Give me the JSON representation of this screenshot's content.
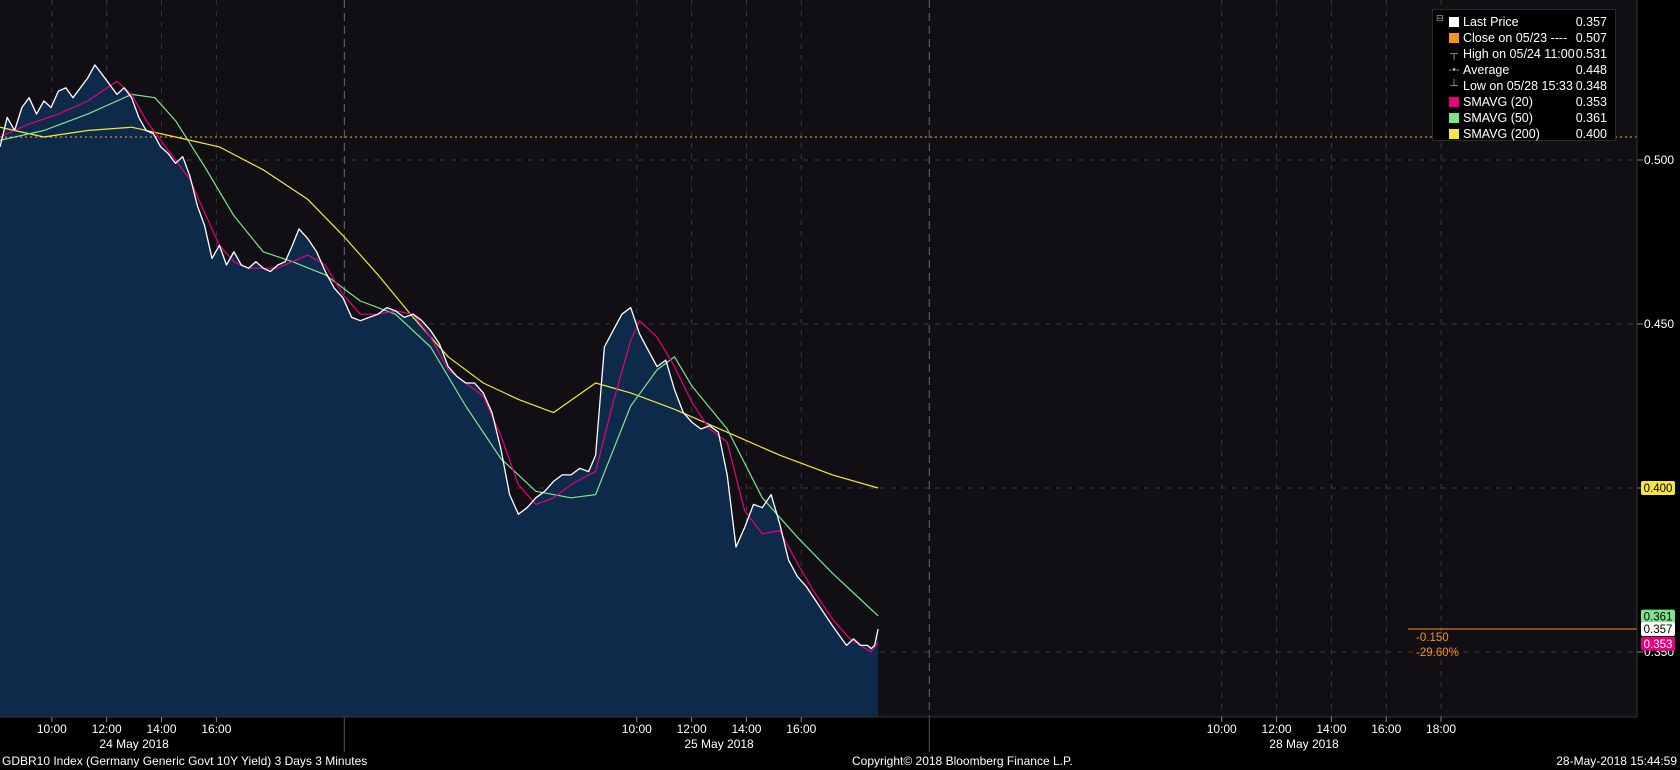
{
  "footer": {
    "left": "GDBR10 Index (Germany Generic Govt 10Y Yield) 3 Days 3 Minutes",
    "center": "Copyright© 2018 Bloomberg Finance L.P.",
    "right": "28-May-2018 15:44:59"
  },
  "legend": [
    {
      "label": "Last Price",
      "value": "0.357",
      "color": "#ffffff",
      "marker": "square"
    },
    {
      "label": "Close on 05/23 ----",
      "value": "0.507",
      "color": "#f7931e",
      "marker": "square"
    },
    {
      "label": "High on 05/24 11:00",
      "value": "0.531",
      "color": "#aaaaaa",
      "marker": "high-icon"
    },
    {
      "label": "Average",
      "value": "0.448",
      "color": "#aaaaaa",
      "marker": "average-icon"
    },
    {
      "label": "Low on 05/28 15:33",
      "value": "0.348",
      "color": "#aaaaaa",
      "marker": "low-icon"
    },
    {
      "label": "SMAVG (20)",
      "value": "0.353",
      "color": "#e6007e",
      "marker": "square"
    },
    {
      "label": "SMAVG (50)",
      "value": "0.361",
      "color": "#7fe38a",
      "marker": "square"
    },
    {
      "label": "SMAVG (200)",
      "value": "0.400",
      "color": "#f5e642",
      "marker": "square"
    }
  ],
  "chart_data": {
    "type": "area",
    "ylim": [
      0.32,
      0.535
    ],
    "y_ticks": [
      "0.500",
      "0.450",
      "0.400",
      "0.350"
    ],
    "y_tick_values": [
      0.5,
      0.45,
      0.4,
      0.35
    ],
    "x_tick_labels": [
      "10:00",
      "12:00",
      "14:00",
      "16:00",
      "10:00",
      "12:00",
      "14:00",
      "16:00",
      "10:00",
      "12:00",
      "14:00",
      "16:00",
      "18:00"
    ],
    "x_tick_times": [
      0.09375,
      0.125,
      0.15625,
      0.1875,
      0.4270833,
      0.4583333,
      0.4895833,
      0.5208333,
      0.7604167,
      0.7916667,
      0.8229167,
      0.8541667,
      0.8854167
    ],
    "day_labels": [
      "24 May 2018",
      "25 May 2018",
      "28 May 2018"
    ],
    "day_label_times": [
      0.140625,
      0.4739583,
      0.8072917
    ],
    "day_separator_times": [
      0.2604167,
      0.59375
    ],
    "xlim": [
      0.0642,
      0.8962
    ],
    "x_unit": "days since 24 May 2018 00:00 (25 May shown at +0.333, 28 May at +0.666 on the compressed trading axis)",
    "reference_line": {
      "label": "Close on 05/23",
      "value": 0.507,
      "color": "#f7931e"
    },
    "last_x": 0.8666,
    "series": [
      {
        "name": "Last Price",
        "color": "#ffffff",
        "points": [
          [
            0.0642,
            0.504
          ],
          [
            0.0683,
            0.513
          ],
          [
            0.0725,
            0.509
          ],
          [
            0.0767,
            0.516
          ],
          [
            0.0808,
            0.519
          ],
          [
            0.085,
            0.514
          ],
          [
            0.0892,
            0.518
          ],
          [
            0.0933,
            0.516
          ],
          [
            0.0975,
            0.521
          ],
          [
            0.1017,
            0.522
          ],
          [
            0.1058,
            0.519
          ],
          [
            0.11,
            0.522
          ],
          [
            0.1142,
            0.525
          ],
          [
            0.1183,
            0.529
          ],
          [
            0.1225,
            0.526
          ],
          [
            0.1267,
            0.523
          ],
          [
            0.1308,
            0.52
          ],
          [
            0.135,
            0.522
          ],
          [
            0.1392,
            0.519
          ],
          [
            0.1433,
            0.513
          ],
          [
            0.1475,
            0.509
          ],
          [
            0.1517,
            0.508
          ],
          [
            0.1558,
            0.504
          ],
          [
            0.16,
            0.502
          ],
          [
            0.1642,
            0.499
          ],
          [
            0.1683,
            0.501
          ],
          [
            0.1725,
            0.495
          ],
          [
            0.1767,
            0.486
          ],
          [
            0.1808,
            0.48
          ],
          [
            0.185,
            0.47
          ],
          [
            0.1892,
            0.474
          ],
          [
            0.1933,
            0.468
          ],
          [
            0.1975,
            0.472
          ],
          [
            0.2017,
            0.468
          ],
          [
            0.2058,
            0.467
          ],
          [
            0.21,
            0.469
          ],
          [
            0.2142,
            0.467
          ],
          [
            0.2183,
            0.466
          ],
          [
            0.2225,
            0.468
          ],
          [
            0.2267,
            0.469
          ],
          [
            0.2308,
            0.474
          ],
          [
            0.2346,
            0.479
          ],
          [
            0.2396,
            0.476
          ],
          [
            0.2446,
            0.472
          ],
          [
            0.2496,
            0.466
          ],
          [
            0.2546,
            0.461
          ],
          [
            0.2596,
            0.458
          ],
          [
            0.2646,
            0.452
          ],
          [
            0.2696,
            0.451
          ],
          [
            0.2746,
            0.452
          ],
          [
            0.2796,
            0.453
          ],
          [
            0.2846,
            0.455
          ],
          [
            0.2896,
            0.454
          ],
          [
            0.2946,
            0.452
          ],
          [
            0.2996,
            0.453
          ],
          [
            0.3046,
            0.451
          ],
          [
            0.3096,
            0.448
          ],
          [
            0.3146,
            0.444
          ],
          [
            0.3196,
            0.437
          ],
          [
            0.3246,
            0.434
          ],
          [
            0.3296,
            0.432
          ],
          [
            0.3346,
            0.432
          ],
          [
            0.3396,
            0.429
          ],
          [
            0.3446,
            0.423
          ],
          [
            0.3496,
            0.412
          ],
          [
            0.3546,
            0.398
          ],
          [
            0.3596,
            0.392
          ],
          [
            0.3646,
            0.394
          ],
          [
            0.3696,
            0.397
          ],
          [
            0.3746,
            0.399
          ],
          [
            0.3796,
            0.402
          ],
          [
            0.3846,
            0.404
          ],
          [
            0.3896,
            0.404
          ],
          [
            0.3946,
            0.406
          ],
          [
            0.3996,
            0.405
          ],
          [
            0.4036,
            0.41
          ],
          [
            0.4086,
            0.443
          ],
          [
            0.4136,
            0.448
          ],
          [
            0.4186,
            0.453
          ],
          [
            0.4236,
            0.455
          ],
          [
            0.4286,
            0.447
          ],
          [
            0.4336,
            0.442
          ],
          [
            0.4386,
            0.437
          ],
          [
            0.4436,
            0.439
          ],
          [
            0.4486,
            0.43
          ],
          [
            0.4536,
            0.423
          ],
          [
            0.4586,
            0.42
          ],
          [
            0.4636,
            0.418
          ],
          [
            0.4686,
            0.419
          ],
          [
            0.4736,
            0.417
          ],
          [
            0.4786,
            0.404
          ],
          [
            0.4836,
            0.382
          ],
          [
            0.4886,
            0.388
          ],
          [
            0.4936,
            0.395
          ],
          [
            0.4986,
            0.394
          ],
          [
            0.5036,
            0.398
          ],
          [
            0.5086,
            0.389
          ],
          [
            0.5136,
            0.378
          ],
          [
            0.5186,
            0.373
          ],
          [
            0.5236,
            0.37
          ],
          [
            0.5286,
            0.366
          ],
          [
            0.5336,
            0.362
          ],
          [
            0.5386,
            0.358
          ],
          [
            0.5426,
            0.355
          ],
          [
            0.5466,
            0.352
          ],
          [
            0.5506,
            0.354
          ],
          [
            0.5546,
            0.352
          ],
          [
            0.5586,
            0.352
          ],
          [
            0.5606,
            0.351
          ],
          [
            0.5626,
            0.352
          ],
          [
            0.5646,
            0.357
          ]
        ]
      },
      {
        "name": "SMAVG (20)",
        "color": "#e6007e",
        "points": [
          [
            0.0642,
            0.507
          ],
          [
            0.0808,
            0.511
          ],
          [
            0.0975,
            0.514
          ],
          [
            0.1142,
            0.518
          ],
          [
            0.1308,
            0.524
          ],
          [
            0.1392,
            0.52
          ],
          [
            0.1475,
            0.512
          ],
          [
            0.1558,
            0.506
          ],
          [
            0.1642,
            0.5
          ],
          [
            0.1725,
            0.494
          ],
          [
            0.1808,
            0.484
          ],
          [
            0.1892,
            0.474
          ],
          [
            0.1975,
            0.469
          ],
          [
            0.2058,
            0.467
          ],
          [
            0.2142,
            0.467
          ],
          [
            0.2225,
            0.467
          ],
          [
            0.2308,
            0.469
          ],
          [
            0.2396,
            0.471
          ],
          [
            0.2496,
            0.468
          ],
          [
            0.2596,
            0.459
          ],
          [
            0.2696,
            0.453
          ],
          [
            0.2796,
            0.453
          ],
          [
            0.2896,
            0.454
          ],
          [
            0.2996,
            0.453
          ],
          [
            0.3096,
            0.446
          ],
          [
            0.3196,
            0.436
          ],
          [
            0.3296,
            0.432
          ],
          [
            0.3396,
            0.428
          ],
          [
            0.3496,
            0.416
          ],
          [
            0.3596,
            0.401
          ],
          [
            0.3696,
            0.395
          ],
          [
            0.3796,
            0.397
          ],
          [
            0.3896,
            0.401
          ],
          [
            0.3996,
            0.404
          ],
          [
            0.4036,
            0.405
          ],
          [
            0.4136,
            0.426
          ],
          [
            0.4236,
            0.445
          ],
          [
            0.4286,
            0.451
          ],
          [
            0.4386,
            0.446
          ],
          [
            0.4486,
            0.437
          ],
          [
            0.4586,
            0.426
          ],
          [
            0.4686,
            0.418
          ],
          [
            0.4786,
            0.414
          ],
          [
            0.4886,
            0.393
          ],
          [
            0.4986,
            0.386
          ],
          [
            0.5086,
            0.387
          ],
          [
            0.5186,
            0.377
          ],
          [
            0.5286,
            0.368
          ],
          [
            0.5386,
            0.36
          ],
          [
            0.5486,
            0.354
          ],
          [
            0.5606,
            0.35
          ],
          [
            0.5646,
            0.353
          ]
        ]
      },
      {
        "name": "SMAVG (50)",
        "color": "#7fe38a",
        "points": [
          [
            0.0642,
            0.506
          ],
          [
            0.0892,
            0.509
          ],
          [
            0.1142,
            0.514
          ],
          [
            0.1392,
            0.52
          ],
          [
            0.1525,
            0.519
          ],
          [
            0.1642,
            0.512
          ],
          [
            0.1808,
            0.498
          ],
          [
            0.1975,
            0.483
          ],
          [
            0.2142,
            0.472
          ],
          [
            0.2308,
            0.469
          ],
          [
            0.2496,
            0.465
          ],
          [
            0.2696,
            0.457
          ],
          [
            0.2896,
            0.453
          ],
          [
            0.3096,
            0.443
          ],
          [
            0.3296,
            0.425
          ],
          [
            0.3496,
            0.409
          ],
          [
            0.3696,
            0.399
          ],
          [
            0.3896,
            0.397
          ],
          [
            0.4036,
            0.398
          ],
          [
            0.4236,
            0.425
          ],
          [
            0.4386,
            0.436
          ],
          [
            0.4486,
            0.44
          ],
          [
            0.4586,
            0.431
          ],
          [
            0.4786,
            0.418
          ],
          [
            0.4986,
            0.397
          ],
          [
            0.5186,
            0.385
          ],
          [
            0.5386,
            0.374
          ],
          [
            0.5546,
            0.366
          ],
          [
            0.5646,
            0.361
          ]
        ]
      },
      {
        "name": "SMAVG (200)",
        "color": "#f5e642",
        "points": [
          [
            0.0642,
            0.51
          ],
          [
            0.0892,
            0.507
          ],
          [
            0.1142,
            0.509
          ],
          [
            0.1392,
            0.51
          ],
          [
            0.1642,
            0.507
          ],
          [
            0.1892,
            0.504
          ],
          [
            0.2142,
            0.497
          ],
          [
            0.2396,
            0.488
          ],
          [
            0.2596,
            0.477
          ],
          [
            0.2796,
            0.465
          ],
          [
            0.2996,
            0.452
          ],
          [
            0.3196,
            0.44
          ],
          [
            0.3396,
            0.432
          ],
          [
            0.3596,
            0.427
          ],
          [
            0.3796,
            0.423
          ],
          [
            0.4036,
            0.432
          ],
          [
            0.4236,
            0.429
          ],
          [
            0.4486,
            0.424
          ],
          [
            0.4786,
            0.417
          ],
          [
            0.5086,
            0.41
          ],
          [
            0.5386,
            0.404
          ],
          [
            0.5646,
            0.4
          ]
        ]
      }
    ],
    "right_labels": [
      {
        "text": "0.400",
        "value": 0.4,
        "bg": "#f5e642",
        "fg": "#000000"
      },
      {
        "text": "0.361",
        "value": 0.3608,
        "bg": "#7fe38a",
        "fg": "#000000"
      },
      {
        "text": "0.357",
        "value": 0.357,
        "bg": "#ffffff",
        "fg": "#000000"
      },
      {
        "text": "0.353",
        "value": 0.3525,
        "bg": "#e6007e",
        "fg": "#ffffff"
      }
    ],
    "change_labels": [
      {
        "text": "-0.150",
        "color": "#f7931e"
      },
      {
        "text": "-29.60%",
        "color": "#f7931e"
      }
    ]
  }
}
